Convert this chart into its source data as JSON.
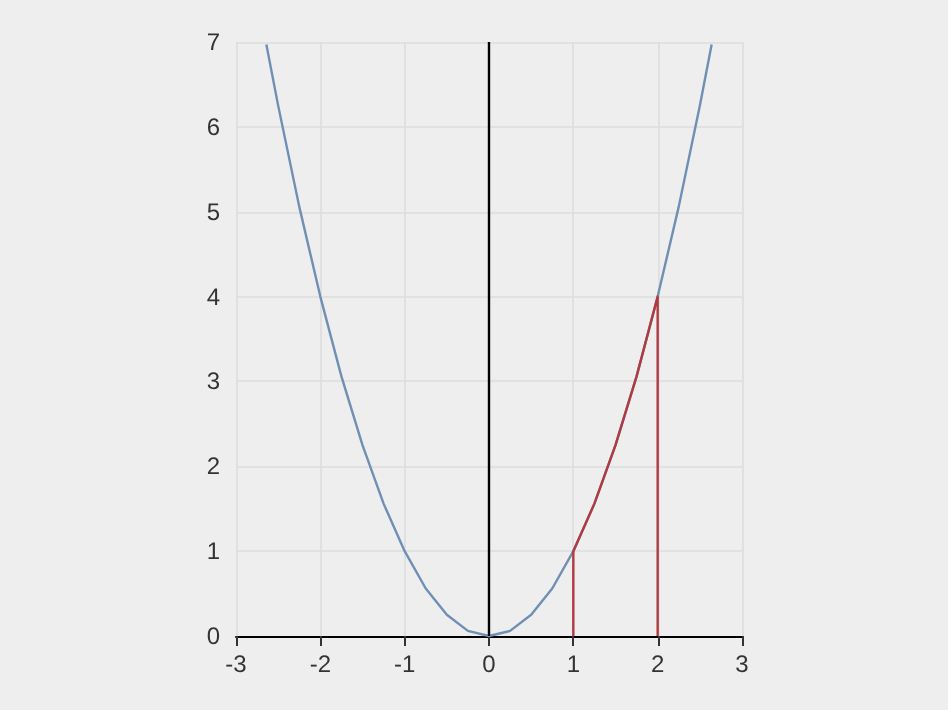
{
  "chart_data": {
    "type": "line",
    "xlim": [
      -3,
      3
    ],
    "xticks": [
      -3,
      -2,
      -1,
      0,
      1,
      2,
      3
    ],
    "ylim": [
      0,
      7
    ],
    "yticks": [
      0,
      1,
      2,
      3,
      4,
      5,
      6,
      7
    ],
    "grid": true,
    "series": [
      {
        "color": "#6f8fb4",
        "x": [
          -2.64,
          -2.5,
          -2.25,
          -2,
          -1.75,
          -1.5,
          -1.25,
          -1,
          -0.75,
          -0.5,
          -0.25,
          0,
          0.25,
          0.5,
          0.75,
          1,
          1.25,
          1.5,
          1.75,
          2,
          2.25,
          2.5,
          2.64
        ],
        "values": [
          6.97,
          6.25,
          5.06,
          4,
          3.06,
          2.25,
          1.56,
          1,
          0.56,
          0.25,
          0.06,
          0,
          0.06,
          0.25,
          0.56,
          1,
          1.56,
          2.25,
          3.06,
          4,
          5.06,
          6.25,
          6.97
        ]
      },
      {
        "color": "#b03a3f",
        "x": [
          1,
          1,
          1.25,
          1.5,
          1.75,
          2,
          2
        ],
        "values": [
          0,
          1,
          1.56,
          2.25,
          3.06,
          4,
          0
        ]
      }
    ],
    "ref_lines": [
      {
        "axis": "x",
        "value": 0,
        "color": "#000000"
      }
    ]
  }
}
